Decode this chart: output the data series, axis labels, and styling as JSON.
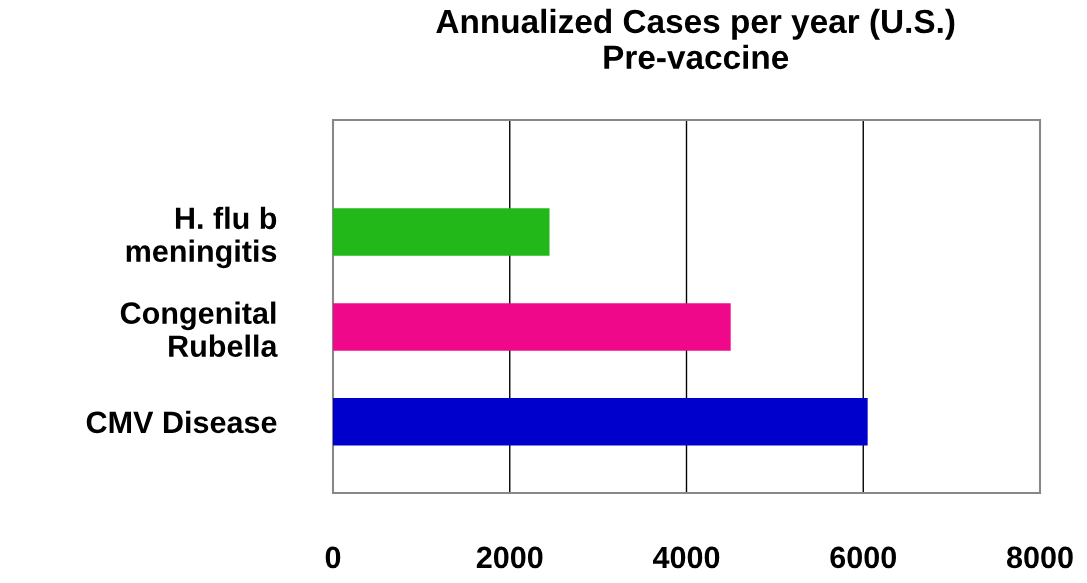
{
  "chart_data": {
    "type": "bar",
    "orientation": "horizontal",
    "title": "Annualized Cases per year (U.S.)\nPre-vaccine",
    "categories": [
      "H. flu b\nmeningitis",
      "Congenital\nRubella",
      "CMV Disease"
    ],
    "values": [
      2450,
      4500,
      6050
    ],
    "colors": [
      "#22b81a",
      "#f0088a",
      "#0000cc"
    ],
    "xlim": [
      0,
      8000
    ],
    "xticks": [
      0,
      2000,
      4000,
      6000,
      8000
    ],
    "grid": "x"
  }
}
